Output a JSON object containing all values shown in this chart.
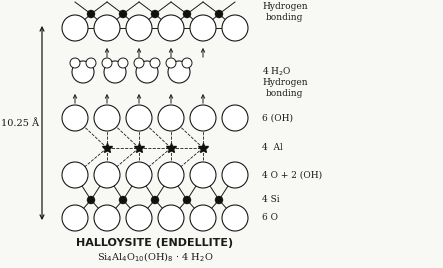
{
  "title": "HALLOYSITE (ENDELLITE)",
  "formula": "Si₄Al₄O₁₀(OH)₈· 4 H₂O",
  "dimension_label": "10.25 Å",
  "bg_color": "#f8f8f4",
  "line_color": "#1a1a1a",
  "circle_fc": "#ffffff",
  "circle_ec": "#1a1a1a",
  "dot_color": "#111111"
}
